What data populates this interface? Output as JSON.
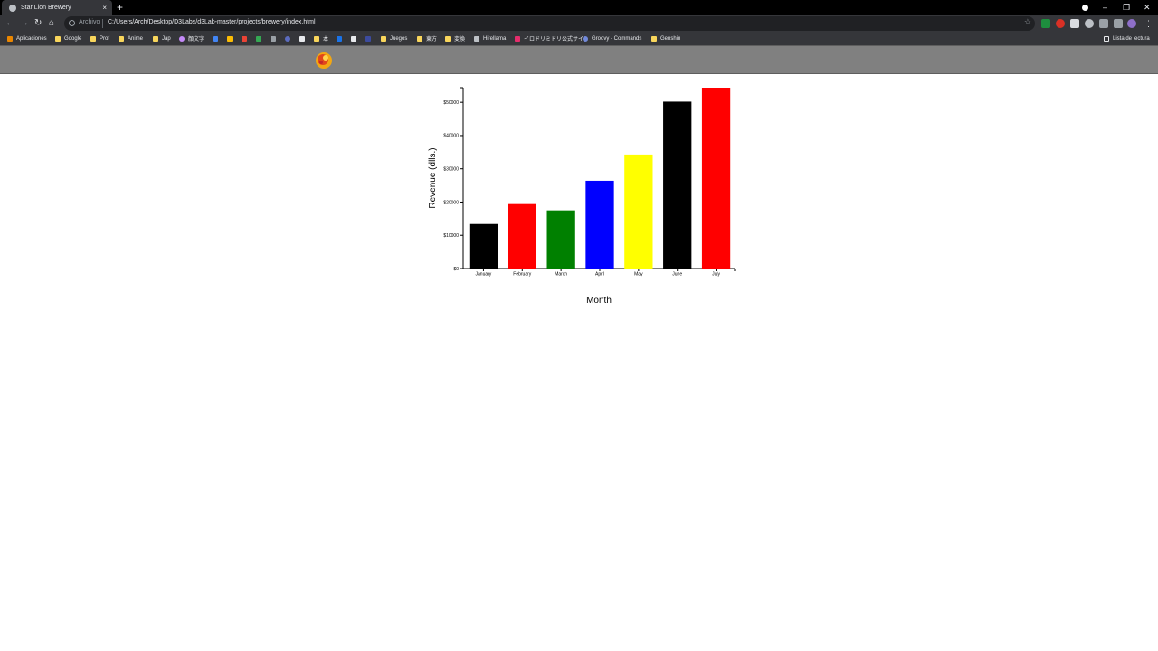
{
  "browser": {
    "tab_title": "Star Lion Brewery",
    "new_tab_symbol": "+",
    "close_symbol": "×",
    "scheme_label": "Archivo",
    "url": "C:/Users/Arch/Desktop/D3Labs/d3Lab-master/projects/brewery/index.html",
    "reading_list": "Lista de lectura",
    "bookmarks": [
      "Aplicaciones",
      "Google",
      "Prof",
      "Anime",
      "Jap",
      "顔文字",
      "本",
      "Juegos",
      "東方",
      "変換",
      "Hirellama",
      "イロドリミドリ公式サイ...",
      "Groovy - Commands",
      "Genshin"
    ]
  },
  "chart_data": {
    "type": "bar",
    "categories": [
      "January",
      "February",
      "March",
      "April",
      "May",
      "June",
      "July"
    ],
    "values": [
      13400,
      19400,
      17500,
      26400,
      34300,
      50200,
      54400
    ],
    "colors": [
      "#000000",
      "#ff0000",
      "#008000",
      "#0000ff",
      "#ffff00",
      "#000000",
      "#ff0000"
    ],
    "title": "",
    "xlabel": "Month",
    "ylabel": "Revenue (dlls.)",
    "ylim": [
      0,
      54400
    ],
    "yticks": [
      0,
      10000,
      20000,
      30000,
      40000,
      50000
    ],
    "ytick_labels": [
      "$0",
      "$10000",
      "$20000",
      "$30000",
      "$40000",
      "$50000"
    ],
    "grid": false
  }
}
